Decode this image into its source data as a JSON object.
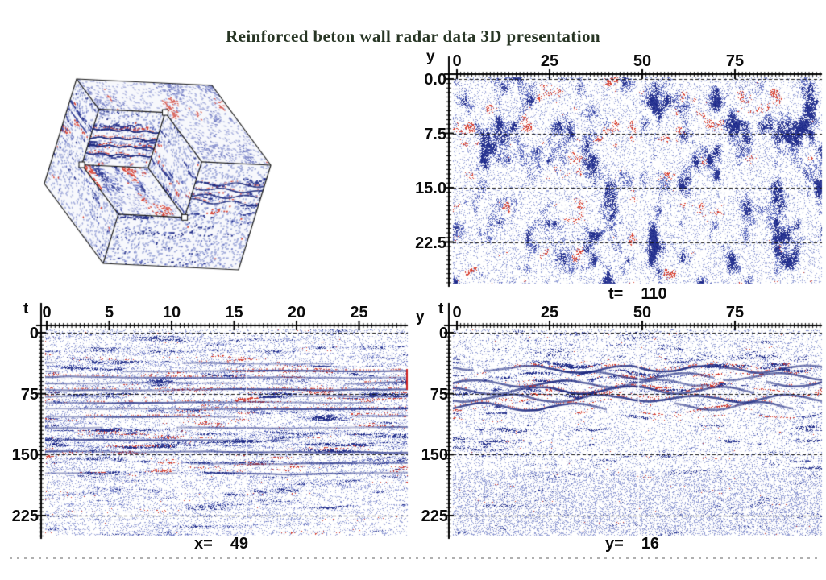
{
  "title": "Reinforced beton wall radar data 3D presentation",
  "palette": {
    "positive": "#3240a0",
    "negative": "#d63c2c",
    "background": "#ffffff",
    "axis_color": "#000000",
    "grid_dash_color": "#151515",
    "crosshair_color": "#ffffff"
  },
  "volume_view": {
    "type": "3d-volume",
    "description": "Cut-corner cube showing radar amplitude on three orthogonal slice faces",
    "handle_count": 3
  },
  "chart_data": [
    {
      "id": "time_slice",
      "type": "heatmap",
      "slice": {
        "label": "t=",
        "value": "110"
      },
      "x_axis": {
        "letter": "",
        "tick_labels": [
          "0",
          "25",
          "50",
          "75"
        ],
        "tick_values": [
          0,
          25,
          50,
          75
        ],
        "range": [
          0,
          98
        ]
      },
      "y_axis": {
        "letter": "y",
        "tick_labels": [
          "0.0",
          "7.5",
          "15.0",
          "22.5"
        ],
        "tick_values": [
          0,
          7.5,
          15,
          22.5
        ],
        "range": [
          0,
          28
        ]
      },
      "dashed_gridlines": [
        0,
        7.5,
        15,
        22.5
      ],
      "marker_line": {
        "axis": "x",
        "value": 49
      }
    },
    {
      "id": "x_slice",
      "type": "heatmap",
      "slice": {
        "label": "x=",
        "value": "49"
      },
      "x_axis": {
        "letter": "y",
        "tick_labels": [
          "0",
          "5",
          "10",
          "15",
          "20",
          "25"
        ],
        "tick_values": [
          0,
          5,
          10,
          15,
          20,
          25
        ],
        "range": [
          0,
          29
        ]
      },
      "y_axis": {
        "letter": "t",
        "tick_labels": [
          "0",
          "75",
          "150",
          "225"
        ],
        "tick_values": [
          0,
          75,
          150,
          225
        ],
        "range": [
          0,
          250
        ]
      },
      "dashed_gridlines": [
        0,
        75,
        150,
        225
      ],
      "marker_line": {
        "axis": "x",
        "value": 16
      }
    },
    {
      "id": "y_slice",
      "type": "heatmap",
      "slice": {
        "label": "y=",
        "value": "16"
      },
      "x_axis": {
        "letter": "",
        "tick_labels": [
          "0",
          "25",
          "50",
          "75"
        ],
        "tick_values": [
          0,
          25,
          50,
          75
        ],
        "range": [
          0,
          98
        ]
      },
      "y_axis": {
        "letter": "t",
        "tick_labels": [
          "0",
          "75",
          "150",
          "225"
        ],
        "tick_values": [
          0,
          75,
          150,
          225
        ],
        "range": [
          0,
          250
        ]
      },
      "dashed_gridlines": [
        0,
        75,
        150,
        225
      ],
      "marker_line": {
        "axis": "x",
        "value": 49
      }
    }
  ]
}
